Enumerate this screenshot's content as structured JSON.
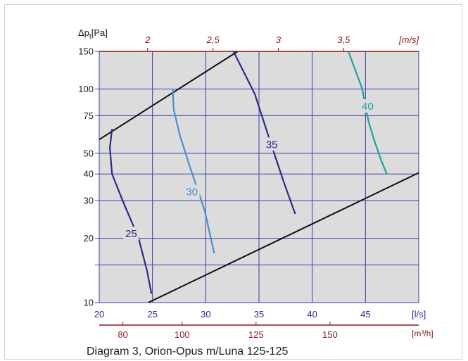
{
  "chart_data": {
    "type": "line",
    "caption": "Diagram 3, Orion-Opus m/Luna 125-125",
    "y_axis": {
      "label": "Δp",
      "label_sub": "t",
      "label_unit": "[Pa]",
      "scale": "log",
      "range": [
        10,
        150
      ],
      "ticks": [
        10,
        20,
        30,
        40,
        50,
        75,
        100,
        150
      ],
      "tick_labels": [
        "10",
        "20",
        "30",
        "40",
        "50",
        "75",
        "100",
        "150"
      ],
      "minor_gridlines": [
        15
      ]
    },
    "x_axis_bottom": {
      "unit_label": "[l/s]",
      "range": [
        20,
        50
      ],
      "ticks": [
        20,
        25,
        30,
        35,
        40,
        45
      ],
      "tick_labels": [
        "20",
        "25",
        "30",
        "35",
        "40",
        "45"
      ]
    },
    "x_axis_bottom_secondary": {
      "unit_label": "[m³/h]",
      "ticks": [
        80,
        100,
        125,
        150
      ],
      "tick_labels": [
        "80",
        "100",
        "125",
        "150"
      ]
    },
    "x_axis_top": {
      "unit_label": "[m/s]",
      "ticks": [
        2,
        2.5,
        3,
        3.5
      ],
      "tick_labels": [
        "2",
        "2,5",
        "3",
        "3,5"
      ]
    },
    "grid": true,
    "background_color": "#dcdcdc",
    "grid_color": "#3d3da6",
    "boundary_lines": [
      {
        "points": [
          [
            20,
            58
          ],
          [
            33,
            150
          ]
        ]
      },
      {
        "points": [
          [
            24.6,
            10
          ],
          [
            51.5,
            44
          ]
        ]
      }
    ],
    "series": [
      {
        "name": "25",
        "color": "#2e2a86",
        "label_at": [
          23,
          21
        ],
        "points": [
          [
            21.2,
            65
          ],
          [
            21.0,
            53
          ],
          [
            21.2,
            40
          ],
          [
            22.2,
            30
          ],
          [
            23.7,
            20
          ],
          [
            24.5,
            14
          ],
          [
            24.9,
            11
          ]
        ]
      },
      {
        "name": "30",
        "color": "#4b8fd0",
        "label_at": [
          28.7,
          33
        ],
        "points": [
          [
            26.9,
            100
          ],
          [
            27.0,
            80
          ],
          [
            27.6,
            60
          ],
          [
            28.6,
            42
          ],
          [
            29.9,
            27
          ],
          [
            30.8,
            17
          ]
        ]
      },
      {
        "name": "35",
        "color": "#2e2a86",
        "label_at": [
          36.2,
          55
        ],
        "points": [
          [
            32.6,
            150
          ],
          [
            34.6,
            95
          ],
          [
            36.0,
            58
          ],
          [
            37.3,
            37
          ],
          [
            38.4,
            26
          ]
        ]
      },
      {
        "name": "40",
        "color": "#20a0a0",
        "label_at": [
          45.2,
          83
        ],
        "points": [
          [
            43.4,
            150
          ],
          [
            44.7,
            100
          ],
          [
            45.3,
            70
          ],
          [
            45.8,
            58
          ],
          [
            46.5,
            46
          ],
          [
            47.0,
            40
          ]
        ]
      }
    ]
  }
}
